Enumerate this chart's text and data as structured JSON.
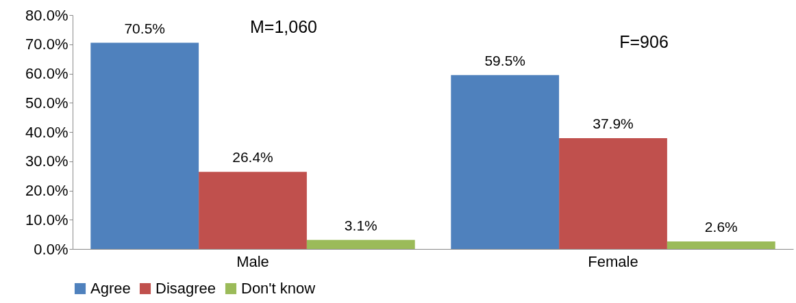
{
  "chart_data": {
    "type": "bar",
    "categories": [
      "Male",
      "Female"
    ],
    "series": [
      {
        "name": "Agree",
        "color": "#4f81bd",
        "values": [
          70.5,
          59.5
        ],
        "value_labels": [
          "70.5%",
          "59.5%"
        ]
      },
      {
        "name": "Disagree",
        "color": "#c0504d",
        "values": [
          26.4,
          37.9
        ],
        "value_labels": [
          "26.4%",
          "37.9%"
        ]
      },
      {
        "name": "Don't know",
        "color": "#9bbb59",
        "values": [
          3.1,
          2.6
        ],
        "value_labels": [
          "3.1%",
          "2.6%"
        ]
      }
    ],
    "ylim": [
      0,
      80
    ],
    "yticks": [
      {
        "value": 0,
        "label": "0.0%"
      },
      {
        "value": 10,
        "label": "10.0%"
      },
      {
        "value": 20,
        "label": "20.0%"
      },
      {
        "value": 30,
        "label": "30.0%"
      },
      {
        "value": 40,
        "label": "40.0%"
      },
      {
        "value": 50,
        "label": "50.0%"
      },
      {
        "value": 60,
        "label": "60.0%"
      },
      {
        "value": 70,
        "label": "70.0%"
      },
      {
        "value": 80,
        "label": "80.0%"
      }
    ],
    "annotations": [
      "M=1,060",
      "F=906"
    ],
    "grid": false,
    "legend": "bottom"
  }
}
